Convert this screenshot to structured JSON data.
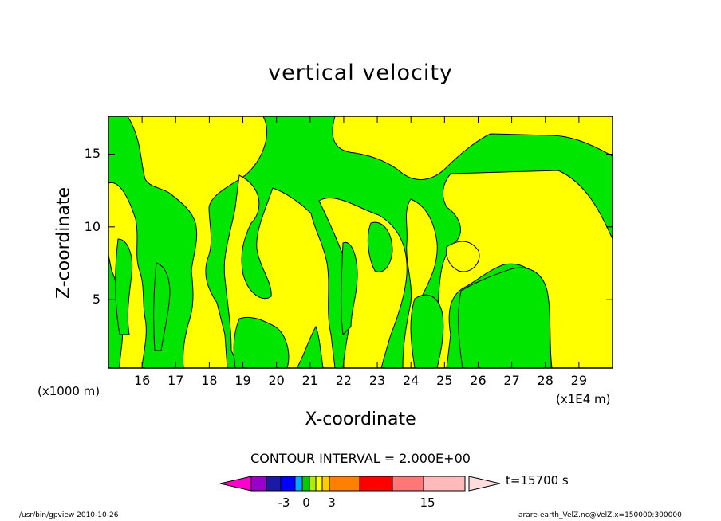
{
  "chart_data": {
    "type": "heatmap",
    "title": "vertical velocity",
    "xlabel": "X-coordinate",
    "ylabel": "Z-coordinate",
    "x_unit_label": "(x1E4 m)",
    "y_unit_label": "(x1000 m)",
    "x_ticks": [
      "16",
      "17",
      "18",
      "19",
      "20",
      "21",
      "22",
      "23",
      "24",
      "25",
      "26",
      "27",
      "28",
      "29"
    ],
    "y_ticks": [
      "5",
      "10",
      "15"
    ],
    "x_tick_values": [
      16,
      17,
      18,
      19,
      20,
      21,
      22,
      23,
      24,
      25,
      26,
      27,
      28,
      29
    ],
    "y_tick_values": [
      5,
      10,
      15
    ],
    "xlim": [
      15,
      30
    ],
    "ylim": [
      0.3,
      17.6
    ],
    "contour_interval_text": "CONTOUR INTERVAL = 2.000E+00",
    "time_label": "t=15700 s",
    "colorbar_labels": [
      "-3",
      "0",
      "3",
      "15"
    ],
    "colorbar_colors": [
      "#9900cc",
      "#1a1aa6",
      "#0000ff",
      "#00aaff",
      "#00cc00",
      "#aaee00",
      "#ffff00",
      "#ffcc00",
      "#ff7f00",
      "#ff0000",
      "#ff7777",
      "#ffbbbb"
    ],
    "regions": {
      "positive_color": "#ffff00",
      "negative_color": "#00e600"
    }
  },
  "footer": {
    "left": "/usr/bin/gpview  2010-10-26",
    "right": "arare-earth_VelZ.nc@VelZ,x=150000:300000"
  }
}
